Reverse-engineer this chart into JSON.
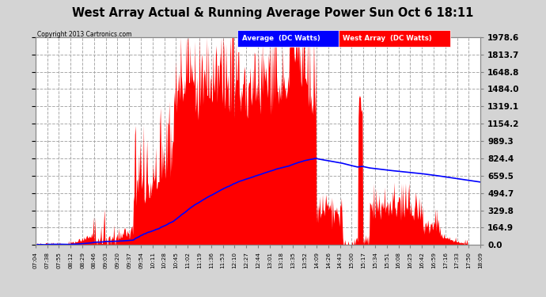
{
  "title": "West Array Actual & Running Average Power Sun Oct 6 18:11",
  "copyright": "Copyright 2013 Cartronics.com",
  "legend_labels": [
    "Average  (DC Watts)",
    "West Array  (DC Watts)"
  ],
  "yticks": [
    0.0,
    164.9,
    329.8,
    494.7,
    659.5,
    824.4,
    989.3,
    1154.2,
    1319.1,
    1484.0,
    1648.8,
    1813.7,
    1978.6
  ],
  "ymin": 0.0,
  "ymax": 1978.6,
  "plot_bg_color": "#ffffff",
  "fig_bg_color": "#d4d4d4",
  "grid_color": "#aaaaaa",
  "xtick_labels": [
    "07:04",
    "07:38",
    "07:55",
    "08:12",
    "08:29",
    "08:46",
    "09:03",
    "09:20",
    "09:37",
    "09:54",
    "10:11",
    "10:28",
    "10:45",
    "11:02",
    "11:19",
    "11:36",
    "11:53",
    "12:10",
    "12:27",
    "12:44",
    "13:01",
    "13:18",
    "13:35",
    "13:52",
    "14:09",
    "14:26",
    "14:43",
    "15:00",
    "15:17",
    "15:34",
    "15:51",
    "16:08",
    "16:25",
    "16:42",
    "16:59",
    "17:16",
    "17:33",
    "17:50",
    "18:09"
  ]
}
